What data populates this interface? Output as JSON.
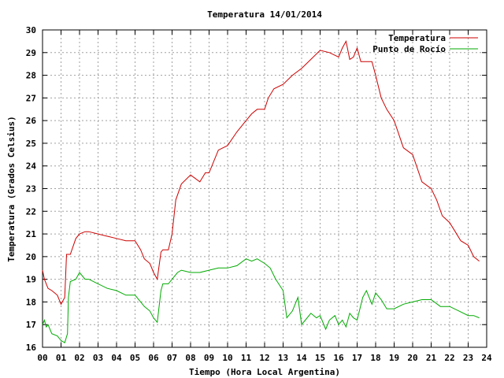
{
  "chart_data": {
    "type": "line",
    "title": "Temperatura 14/01/2014",
    "xlabel": "Tiempo (Hora Local Argentina)",
    "ylabel": "Temperatura (Grados Celsius)",
    "xlim": [
      0,
      24
    ],
    "ylim": [
      16,
      30
    ],
    "xticks": [
      "00",
      "01",
      "02",
      "03",
      "04",
      "05",
      "06",
      "07",
      "08",
      "09",
      "10",
      "11",
      "12",
      "13",
      "14",
      "15",
      "16",
      "17",
      "18",
      "19",
      "20",
      "21",
      "22",
      "23",
      "24"
    ],
    "yticks": [
      "16",
      "17",
      "18",
      "19",
      "20",
      "21",
      "22",
      "23",
      "24",
      "25",
      "26",
      "27",
      "28",
      "29",
      "30"
    ],
    "grid": true,
    "legend_position": "top-right",
    "series": [
      {
        "name": "Temperatura",
        "color": "#cc0000",
        "x": [
          0.0,
          0.1,
          0.3,
          0.5,
          0.8,
          1.0,
          1.2,
          1.3,
          1.35,
          1.5,
          1.8,
          2.0,
          2.3,
          2.5,
          3.0,
          3.5,
          4.0,
          4.5,
          5.0,
          5.3,
          5.5,
          5.8,
          6.0,
          6.2,
          6.4,
          6.5,
          6.8,
          7.0,
          7.2,
          7.5,
          8.0,
          8.5,
          8.8,
          9.0,
          9.5,
          10.0,
          10.5,
          11.0,
          11.3,
          11.6,
          12.0,
          12.2,
          12.5,
          13.0,
          13.5,
          14.0,
          14.5,
          15.0,
          15.5,
          16.0,
          16.2,
          16.4,
          16.6,
          16.8,
          17.0,
          17.2,
          17.5,
          17.8,
          18.0,
          18.3,
          18.6,
          19.0,
          19.5,
          20.0,
          20.5,
          21.0,
          21.3,
          21.6,
          22.0,
          22.3,
          22.6,
          23.0,
          23.3,
          23.6
        ],
        "y": [
          19.4,
          19.0,
          18.6,
          18.5,
          18.3,
          17.9,
          18.2,
          20.1,
          20.1,
          20.1,
          20.8,
          21.0,
          21.1,
          21.1,
          21.0,
          20.9,
          20.8,
          20.7,
          20.7,
          20.3,
          19.9,
          19.7,
          19.3,
          19.0,
          20.2,
          20.3,
          20.3,
          21.0,
          22.5,
          23.2,
          23.6,
          23.3,
          23.7,
          23.7,
          24.7,
          24.9,
          25.5,
          26.0,
          26.3,
          26.5,
          26.5,
          27.0,
          27.4,
          27.6,
          28.0,
          28.3,
          28.7,
          29.1,
          29.0,
          28.8,
          29.2,
          29.5,
          28.7,
          28.8,
          29.2,
          28.6,
          28.6,
          28.6,
          28.0,
          27.0,
          26.5,
          26.0,
          24.8,
          24.5,
          23.3,
          23.0,
          22.5,
          21.8,
          21.5,
          21.1,
          20.7,
          20.5,
          20.0,
          19.8
        ]
      },
      {
        "name": "Punto de Rocío",
        "color": "#00aa00",
        "x": [
          0.0,
          0.1,
          0.2,
          0.3,
          0.5,
          0.8,
          1.0,
          1.2,
          1.35,
          1.4,
          1.5,
          1.8,
          2.0,
          2.3,
          2.5,
          3.0,
          3.5,
          4.0,
          4.5,
          5.0,
          5.3,
          5.5,
          5.8,
          6.0,
          6.2,
          6.4,
          6.5,
          6.8,
          7.0,
          7.3,
          7.5,
          8.0,
          8.5,
          9.0,
          9.5,
          10.0,
          10.5,
          11.0,
          11.3,
          11.6,
          12.0,
          12.3,
          12.6,
          13.0,
          13.2,
          13.5,
          13.8,
          14.0,
          14.2,
          14.5,
          14.8,
          15.0,
          15.3,
          15.5,
          15.8,
          16.0,
          16.2,
          16.4,
          16.6,
          16.8,
          17.0,
          17.3,
          17.5,
          17.8,
          18.0,
          18.3,
          18.6,
          19.0,
          19.5,
          20.0,
          20.5,
          21.0,
          21.5,
          22.0,
          22.5,
          23.0,
          23.3,
          23.6
        ],
        "y": [
          17.0,
          17.2,
          16.9,
          17.0,
          16.6,
          16.5,
          16.3,
          16.2,
          16.6,
          18.2,
          18.9,
          19.0,
          19.3,
          19.0,
          19.0,
          18.8,
          18.6,
          18.5,
          18.3,
          18.3,
          18.0,
          17.8,
          17.6,
          17.3,
          17.1,
          18.5,
          18.8,
          18.8,
          19.0,
          19.3,
          19.4,
          19.3,
          19.3,
          19.4,
          19.5,
          19.5,
          19.6,
          19.9,
          19.8,
          19.9,
          19.7,
          19.5,
          19.0,
          18.5,
          17.3,
          17.6,
          18.2,
          17.0,
          17.2,
          17.5,
          17.3,
          17.4,
          16.8,
          17.2,
          17.4,
          17.0,
          17.2,
          16.9,
          17.5,
          17.3,
          17.2,
          18.2,
          18.5,
          17.9,
          18.4,
          18.1,
          17.7,
          17.7,
          17.9,
          18.0,
          18.1,
          18.1,
          17.8,
          17.8,
          17.6,
          17.4,
          17.4,
          17.3
        ]
      }
    ]
  }
}
